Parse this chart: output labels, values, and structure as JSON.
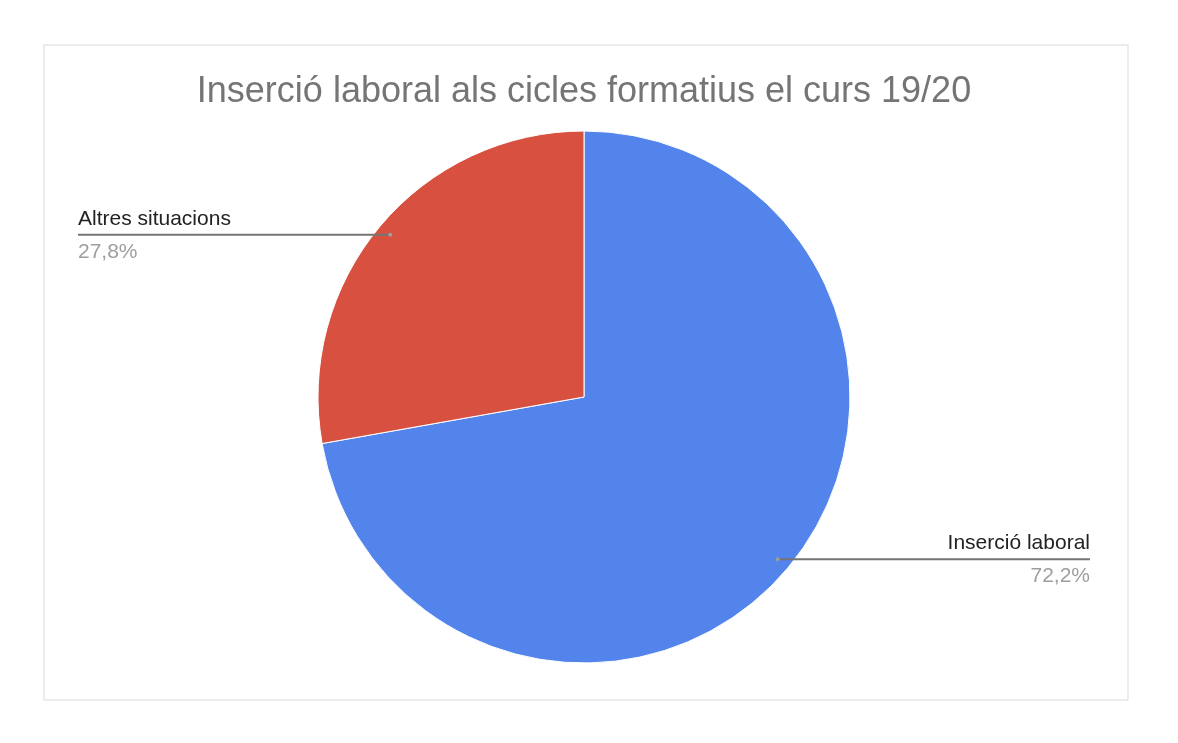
{
  "chart_data": {
    "type": "pie",
    "title": "Inserció laboral als cicles formatius el curs 19/20",
    "categories": [
      "Inserció laboral",
      "Altres situacions"
    ],
    "values": [
      72.2,
      27.8
    ],
    "colors": [
      "#5384ec",
      "#d85140"
    ],
    "value_labels": [
      "72,2%",
      "27,8%"
    ],
    "legend": false
  }
}
